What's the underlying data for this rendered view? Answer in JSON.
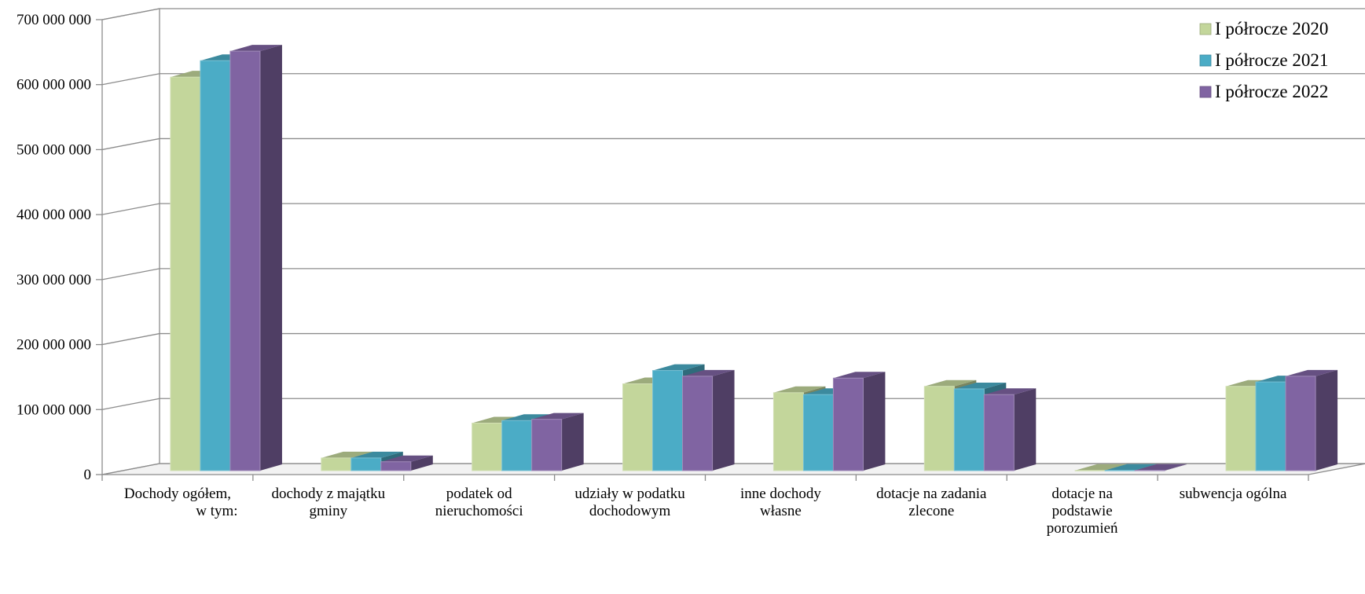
{
  "chart_data": {
    "type": "bar",
    "categories": [
      [
        "Dochody ogółem,",
        "w tym:"
      ],
      [
        "dochody z majątku",
        "gminy"
      ],
      [
        "podatek od",
        "nieruchomości"
      ],
      [
        "udziały w podatku",
        "dochodowym"
      ],
      [
        "inne dochody",
        "własne"
      ],
      [
        "dotacje na zadania",
        "zlecone"
      ],
      [
        "dotacje na",
        "podstawie",
        "porozumień"
      ],
      [
        "subwencja ogólna"
      ]
    ],
    "series": [
      {
        "name": "I półrocze 2020",
        "color": "#c3d69b",
        "values": [
          621000000,
          20000000,
          75000000,
          137000000,
          123000000,
          133000000,
          300000,
          133000000
        ]
      },
      {
        "name": "I półrocze 2021",
        "color": "#4bacc6",
        "values": [
          647000000,
          20000000,
          79000000,
          158000000,
          120000000,
          129000000,
          400000,
          140000000
        ]
      },
      {
        "name": "I półrocze 2022",
        "color": "#8064a2",
        "values": [
          662000000,
          14000000,
          81000000,
          149000000,
          146000000,
          120000000,
          500000,
          149000000
        ]
      }
    ],
    "yticks": [
      0,
      100000000,
      200000000,
      300000000,
      400000000,
      500000000,
      600000000,
      700000000
    ],
    "ytick_labels": [
      "0",
      "100 000 000",
      "200 000 000",
      "300 000 000",
      "400 000 000",
      "500 000 000",
      "600 000 000",
      "700 000 000"
    ],
    "ylim": [
      0,
      700000000
    ],
    "grid": true,
    "style": "3d-clustered-column",
    "legend": "top-right",
    "title": "",
    "xlabel": "",
    "ylabel": ""
  }
}
